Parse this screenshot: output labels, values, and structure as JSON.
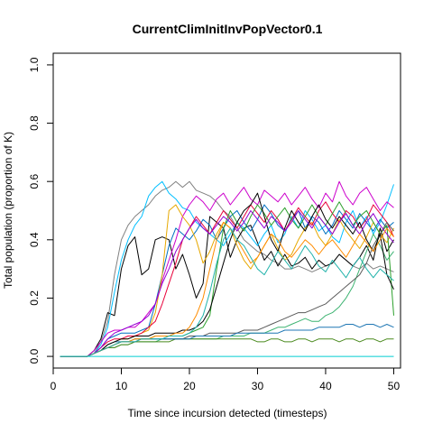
{
  "chart_data": {
    "type": "line",
    "title": "CurrentClimInitInvPopVector0.1",
    "xlabel": "Time since incursion detected (timesteps)",
    "ylabel": "Total population (proportion of K)",
    "xlim": [
      0,
      51
    ],
    "ylim": [
      -0.04,
      1.04
    ],
    "x_ticks": [
      0,
      10,
      20,
      30,
      40,
      50
    ],
    "y_ticks": [
      0.0,
      0.2,
      0.4,
      0.6,
      0.8,
      1.0
    ],
    "x_tick_labels": [
      "0",
      "10",
      "20",
      "30",
      "40",
      "50"
    ],
    "y_tick_labels": [
      "0.0",
      "0.2",
      "0.4",
      "0.6",
      "0.8",
      "1.0"
    ],
    "grid": false,
    "legend": "none",
    "x": [
      1,
      2,
      3,
      4,
      5,
      6,
      7,
      8,
      9,
      10,
      11,
      12,
      13,
      14,
      15,
      16,
      17,
      18,
      19,
      20,
      21,
      22,
      23,
      24,
      25,
      26,
      27,
      28,
      29,
      30,
      31,
      32,
      33,
      34,
      35,
      36,
      37,
      38,
      39,
      40,
      41,
      42,
      43,
      44,
      45,
      46,
      47,
      48,
      49,
      50
    ],
    "series": [
      {
        "color": "#808080",
        "values": [
          0,
          0,
          0,
          0,
          0,
          0.01,
          0.05,
          0.12,
          0.28,
          0.4,
          0.45,
          0.48,
          0.5,
          0.52,
          0.55,
          0.57,
          0.58,
          0.6,
          0.58,
          0.6,
          0.57,
          0.56,
          0.55,
          0.53,
          0.5,
          0.48,
          0.44,
          0.4,
          0.38,
          0.36,
          0.35,
          0.33,
          0.32,
          0.3,
          0.3,
          0.31,
          0.3,
          0.29,
          0.3,
          0.31,
          0.32,
          0.35,
          0.33,
          0.31,
          0.3,
          0.32,
          0.3,
          0.31,
          0.3,
          0.29
        ]
      },
      {
        "color": "#000000",
        "values": [
          0,
          0,
          0,
          0,
          0,
          0.02,
          0.06,
          0.15,
          0.14,
          0.3,
          0.38,
          0.41,
          0.28,
          0.3,
          0.4,
          0.41,
          0.4,
          0.3,
          0.35,
          0.28,
          0.2,
          0.25,
          0.48,
          0.46,
          0.44,
          0.34,
          0.4,
          0.44,
          0.45,
          0.39,
          0.33,
          0.36,
          0.31,
          0.35,
          0.31,
          0.32,
          0.34,
          0.3,
          0.33,
          0.31,
          0.32,
          0.35,
          0.33,
          0.31,
          0.34,
          0.38,
          0.33,
          0.44,
          0.36,
          0.4
        ]
      },
      {
        "color": "#00bfff",
        "values": [
          0,
          0,
          0,
          0,
          0,
          0.01,
          0.04,
          0.1,
          0.22,
          0.33,
          0.4,
          0.45,
          0.48,
          0.55,
          0.58,
          0.6,
          0.56,
          0.54,
          0.51,
          0.5,
          0.46,
          0.44,
          0.42,
          0.4,
          0.38,
          0.42,
          0.46,
          0.44,
          0.41,
          0.38,
          0.42,
          0.45,
          0.39,
          0.42,
          0.48,
          0.44,
          0.5,
          0.47,
          0.43,
          0.45,
          0.41,
          0.39,
          0.46,
          0.5,
          0.44,
          0.48,
          0.42,
          0.46,
          0.52,
          0.59
        ]
      },
      {
        "color": "#0070c0",
        "values": [
          0,
          0,
          0,
          0,
          0,
          0.01,
          0.03,
          0.06,
          0.07,
          0.08,
          0.08,
          0.08,
          0.09,
          0.1,
          0.18,
          0.28,
          0.38,
          0.44,
          0.42,
          0.4,
          0.43,
          0.47,
          0.45,
          0.4,
          0.44,
          0.48,
          0.5,
          0.46,
          0.43,
          0.47,
          0.52,
          0.49,
          0.45,
          0.43,
          0.47,
          0.5,
          0.44,
          0.48,
          0.46,
          0.42,
          0.45,
          0.5,
          0.47,
          0.44,
          0.49,
          0.46,
          0.43,
          0.47,
          0.44,
          0.46
        ]
      },
      {
        "color": "#cc00cc",
        "values": [
          0,
          0,
          0,
          0,
          0,
          0.02,
          0.05,
          0.08,
          0.09,
          0.09,
          0.1,
          0.1,
          0.12,
          0.15,
          0.18,
          0.26,
          0.33,
          0.4,
          0.48,
          0.52,
          0.55,
          0.53,
          0.5,
          0.54,
          0.56,
          0.52,
          0.55,
          0.58,
          0.54,
          0.52,
          0.57,
          0.55,
          0.53,
          0.56,
          0.52,
          0.55,
          0.58,
          0.54,
          0.51,
          0.56,
          0.53,
          0.6,
          0.55,
          0.52,
          0.56,
          0.58,
          0.54,
          0.5,
          0.53,
          0.51
        ]
      },
      {
        "color": "#e6a800",
        "values": [
          0,
          0,
          0,
          0,
          0,
          0.01,
          0.02,
          0.04,
          0.05,
          0.06,
          0.06,
          0.07,
          0.08,
          0.09,
          0.15,
          0.28,
          0.5,
          0.52,
          0.48,
          0.45,
          0.4,
          0.32,
          0.36,
          0.42,
          0.46,
          0.44,
          0.38,
          0.33,
          0.3,
          0.34,
          0.38,
          0.42,
          0.37,
          0.33,
          0.35,
          0.4,
          0.44,
          0.46,
          0.41,
          0.38,
          0.42,
          0.47,
          0.43,
          0.4,
          0.37,
          0.41,
          0.46,
          0.42,
          0.39,
          0.44
        ]
      },
      {
        "color": "#e8003a",
        "values": [
          0,
          0,
          0,
          0,
          0,
          0.01,
          0.03,
          0.05,
          0.06,
          0.06,
          0.07,
          0.07,
          0.08,
          0.1,
          0.12,
          0.18,
          0.25,
          0.32,
          0.4,
          0.44,
          0.48,
          0.45,
          0.42,
          0.46,
          0.5,
          0.47,
          0.44,
          0.48,
          0.52,
          0.49,
          0.46,
          0.5,
          0.47,
          0.43,
          0.47,
          0.51,
          0.48,
          0.45,
          0.5,
          0.53,
          0.49,
          0.46,
          0.5,
          0.48,
          0.44,
          0.47,
          0.52,
          0.49,
          0.46,
          0.41
        ]
      },
      {
        "color": "#2ca02c",
        "values": [
          0,
          0,
          0,
          0,
          0,
          0.01,
          0.02,
          0.03,
          0.04,
          0.05,
          0.05,
          0.06,
          0.06,
          0.06,
          0.07,
          0.07,
          0.07,
          0.07,
          0.07,
          0.08,
          0.09,
          0.1,
          0.14,
          0.3,
          0.44,
          0.5,
          0.46,
          0.43,
          0.48,
          0.52,
          0.49,
          0.45,
          0.48,
          0.51,
          0.47,
          0.44,
          0.48,
          0.52,
          0.48,
          0.45,
          0.49,
          0.53,
          0.49,
          0.45,
          0.48,
          0.5,
          0.46,
          0.42,
          0.45,
          0.14
        ]
      },
      {
        "color": "#3cb371",
        "values": [
          0,
          0,
          0,
          0,
          0,
          0.01,
          0.02,
          0.03,
          0.03,
          0.04,
          0.04,
          0.05,
          0.05,
          0.05,
          0.05,
          0.06,
          0.06,
          0.06,
          0.06,
          0.06,
          0.06,
          0.06,
          0.06,
          0.06,
          0.07,
          0.07,
          0.07,
          0.07,
          0.08,
          0.08,
          0.08,
          0.09,
          0.1,
          0.1,
          0.11,
          0.12,
          0.13,
          0.12,
          0.12,
          0.14,
          0.15,
          0.17,
          0.2,
          0.24,
          0.3,
          0.36,
          0.42,
          0.38,
          0.33,
          0.36
        ]
      },
      {
        "color": "#4a8a1e",
        "values": [
          0,
          0,
          0,
          0,
          0,
          0.01,
          0.02,
          0.03,
          0.03,
          0.04,
          0.04,
          0.05,
          0.05,
          0.05,
          0.05,
          0.05,
          0.05,
          0.06,
          0.06,
          0.06,
          0.06,
          0.06,
          0.06,
          0.06,
          0.06,
          0.06,
          0.06,
          0.06,
          0.06,
          0.05,
          0.05,
          0.06,
          0.06,
          0.05,
          0.05,
          0.06,
          0.06,
          0.05,
          0.06,
          0.06,
          0.06,
          0.05,
          0.06,
          0.06,
          0.05,
          0.06,
          0.06,
          0.05,
          0.06,
          0.06
        ]
      },
      {
        "color": "#5a5a5a",
        "values": [
          0,
          0,
          0,
          0,
          0,
          0.01,
          0.02,
          0.03,
          0.04,
          0.05,
          0.05,
          0.05,
          0.06,
          0.06,
          0.06,
          0.06,
          0.06,
          0.06,
          0.06,
          0.07,
          0.07,
          0.07,
          0.08,
          0.08,
          0.08,
          0.08,
          0.08,
          0.09,
          0.09,
          0.09,
          0.1,
          0.11,
          0.12,
          0.13,
          0.14,
          0.15,
          0.15,
          0.16,
          0.17,
          0.18,
          0.2,
          0.22,
          0.24,
          0.26,
          0.28,
          0.32,
          0.38,
          0.42,
          0.46,
          0.43
        ]
      },
      {
        "color": "#1f77b4",
        "values": [
          0,
          0,
          0,
          0,
          0,
          0.01,
          0.02,
          0.04,
          0.05,
          0.05,
          0.05,
          0.06,
          0.06,
          0.06,
          0.06,
          0.06,
          0.06,
          0.06,
          0.06,
          0.06,
          0.07,
          0.07,
          0.07,
          0.07,
          0.07,
          0.07,
          0.08,
          0.08,
          0.08,
          0.08,
          0.08,
          0.08,
          0.08,
          0.09,
          0.09,
          0.09,
          0.09,
          0.09,
          0.1,
          0.1,
          0.1,
          0.1,
          0.11,
          0.11,
          0.1,
          0.11,
          0.11,
          0.1,
          0.11,
          0.1
        ]
      },
      {
        "color": "#000000",
        "values": [
          0,
          0,
          0,
          0,
          0,
          0.01,
          0.02,
          0.04,
          0.05,
          0.06,
          0.06,
          0.07,
          0.07,
          0.07,
          0.08,
          0.08,
          0.08,
          0.08,
          0.09,
          0.09,
          0.1,
          0.12,
          0.16,
          0.24,
          0.32,
          0.4,
          0.46,
          0.5,
          0.52,
          0.56,
          0.48,
          0.4,
          0.36,
          0.44,
          0.5,
          0.46,
          0.43,
          0.48,
          0.52,
          0.47,
          0.44,
          0.48,
          0.45,
          0.42,
          0.46,
          0.4,
          0.36,
          0.42,
          0.28,
          0.23
        ]
      },
      {
        "color": "#9400d3",
        "values": [
          0,
          0,
          0,
          0,
          0,
          0.01,
          0.03,
          0.06,
          0.08,
          0.09,
          0.1,
          0.11,
          0.12,
          0.14,
          0.18,
          0.25,
          0.3,
          0.36,
          0.4,
          0.44,
          0.47,
          0.44,
          0.42,
          0.45,
          0.48,
          0.46,
          0.43,
          0.46,
          0.5,
          0.47,
          0.44,
          0.48,
          0.46,
          0.43,
          0.46,
          0.5,
          0.47,
          0.44,
          0.48,
          0.45,
          0.42,
          0.46,
          0.49,
          0.45,
          0.42,
          0.46,
          0.49,
          0.45,
          0.42,
          0.39
        ]
      },
      {
        "color": "#ff8c00",
        "values": [
          0,
          0,
          0,
          0,
          0,
          0.01,
          0.02,
          0.03,
          0.04,
          0.05,
          0.05,
          0.06,
          0.06,
          0.06,
          0.07,
          0.07,
          0.07,
          0.08,
          0.08,
          0.1,
          0.14,
          0.2,
          0.3,
          0.4,
          0.46,
          0.44,
          0.4,
          0.36,
          0.32,
          0.34,
          0.38,
          0.42,
          0.4,
          0.36,
          0.34,
          0.37,
          0.4,
          0.38,
          0.35,
          0.38,
          0.4,
          0.37,
          0.34,
          0.38,
          0.42,
          0.39,
          0.36,
          0.4,
          0.44,
          0.41
        ]
      },
      {
        "color": "#00ced1",
        "values": [
          0,
          0,
          0,
          0,
          0,
          0,
          0,
          0,
          0,
          0,
          0,
          0,
          0,
          0,
          0,
          0,
          0,
          0,
          0,
          0,
          0,
          0,
          0,
          0,
          0,
          0,
          0,
          0,
          0,
          0,
          0,
          0,
          0,
          0,
          0,
          0,
          0,
          0,
          0,
          0,
          0,
          0,
          0,
          0,
          0,
          0,
          0,
          0,
          0,
          0
        ]
      },
      {
        "color": "#20b2aa",
        "values": [
          0,
          0,
          0,
          0,
          0,
          0.01,
          0.02,
          0.03,
          0.04,
          0.05,
          0.05,
          0.05,
          0.06,
          0.06,
          0.06,
          0.06,
          0.07,
          0.07,
          0.07,
          0.08,
          0.1,
          0.14,
          0.22,
          0.32,
          0.4,
          0.44,
          0.4,
          0.38,
          0.34,
          0.3,
          0.28,
          0.32,
          0.36,
          0.33,
          0.3,
          0.34,
          0.38,
          0.35,
          0.31,
          0.29,
          0.33,
          0.3,
          0.27,
          0.31,
          0.34,
          0.3,
          0.27,
          0.3,
          0.28,
          0.26
        ]
      }
    ]
  }
}
